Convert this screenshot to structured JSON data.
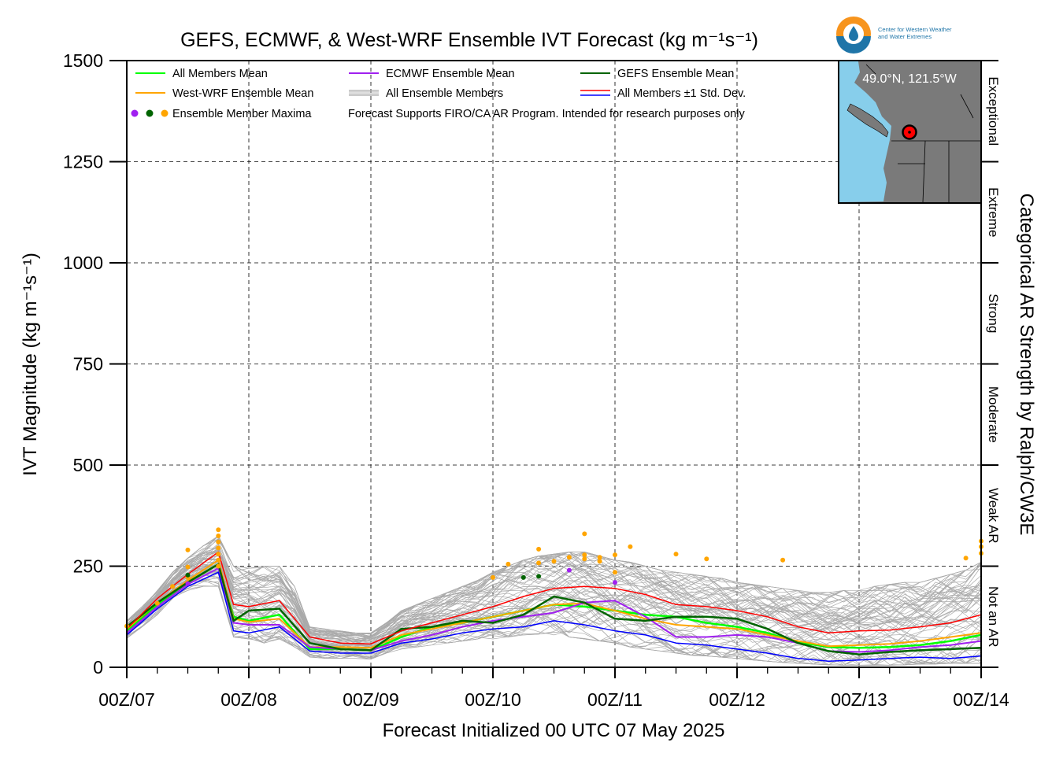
{
  "chart_data": {
    "type": "line",
    "title": "GEFS, ECMWF, & West-WRF Ensemble IVT Forecast (kg m⁻¹s⁻¹)",
    "xlabel": "Forecast Initialized 00 UTC 07 May 2025",
    "ylabel": "IVT Magnitude (kg m⁻¹s⁻¹)",
    "y2label": "Categorical AR Strength by Ralph/CW3E",
    "ylim": [
      0,
      1500
    ],
    "y_ticks": [
      0,
      250,
      500,
      750,
      1000,
      1250,
      1500
    ],
    "x_range_hours": [
      0,
      168
    ],
    "x_ticks": [
      "00Z/07",
      "00Z/08",
      "00Z/09",
      "00Z/10",
      "00Z/11",
      "00Z/12",
      "00Z/13",
      "00Z/14"
    ],
    "grid": true,
    "categories_right": [
      {
        "label": "Not an AR",
        "from": 0,
        "to": 250
      },
      {
        "label": "Weak AR",
        "from": 250,
        "to": 500
      },
      {
        "label": "Moderate",
        "from": 500,
        "to": 750
      },
      {
        "label": "Strong",
        "from": 750,
        "to": 1000
      },
      {
        "label": "Extreme",
        "from": 1000,
        "to": 1250
      },
      {
        "label": "Exceptional",
        "from": 1250,
        "to": 1500
      }
    ],
    "legend": {
      "placement": "top-left",
      "entries": [
        {
          "label": "All Members Mean",
          "color": "#00ff00",
          "kind": "line"
        },
        {
          "label": "ECMWF Ensemble Mean",
          "color": "#a020f0",
          "kind": "line"
        },
        {
          "label": "GEFS Ensemble Mean",
          "color": "#006400",
          "kind": "line"
        },
        {
          "label": "West-WRF Ensemble Mean",
          "color": "#ffa500",
          "kind": "line"
        },
        {
          "label": "All Ensemble Members",
          "color": "#aaaaaa",
          "kind": "multiline"
        },
        {
          "label": "All Members ±1 Std. Dev.",
          "color": "#ff0000",
          "color2": "#0000ff",
          "kind": "pair"
        },
        {
          "label": "Ensemble Member Maxima",
          "colors": [
            "#a020f0",
            "#006400",
            "#ffa500"
          ],
          "kind": "dots"
        }
      ],
      "note": "Forecast Supports FIRO/CA AR Program. Intended for research purposes only"
    },
    "inset_label": "49.0°N, 121.5°W",
    "logo_text": [
      "Center for Western Weather",
      "and Water Extremes"
    ],
    "series": [
      {
        "name": "All Members Mean",
        "color": "#00ff00",
        "width": 2.5,
        "x": [
          0,
          6,
          12,
          18,
          21,
          24,
          30,
          36,
          42,
          48,
          54,
          60,
          66,
          72,
          78,
          84,
          90,
          96,
          102,
          108,
          114,
          120,
          126,
          132,
          138,
          144,
          150,
          156,
          162,
          168
        ],
        "y": [
          90,
          155,
          210,
          255,
          125,
          115,
          130,
          45,
          45,
          42,
          75,
          100,
          110,
          125,
          140,
          155,
          150,
          140,
          130,
          125,
          110,
          100,
          85,
          62,
          50,
          48,
          50,
          55,
          65,
          80
        ]
      },
      {
        "name": "West-WRF Ensemble Mean",
        "color": "#ffa500",
        "width": 2,
        "x": [
          0,
          6,
          12,
          18,
          21,
          24,
          30,
          36,
          42,
          48,
          54,
          60,
          66,
          72,
          78,
          84,
          90,
          96,
          102,
          108,
          114,
          120,
          126,
          132,
          138,
          144,
          150,
          156,
          162,
          168
        ],
        "y": [
          95,
          160,
          215,
          265,
          120,
          112,
          120,
          50,
          50,
          48,
          80,
          95,
          110,
          125,
          140,
          155,
          158,
          140,
          120,
          105,
          100,
          95,
          80,
          65,
          52,
          55,
          58,
          65,
          75,
          85
        ]
      },
      {
        "name": "ECMWF Ensemble Mean",
        "color": "#a020f0",
        "width": 2,
        "x": [
          0,
          6,
          12,
          18,
          21,
          24,
          30,
          36,
          42,
          48,
          54,
          60,
          66,
          72,
          78,
          84,
          90,
          96,
          102,
          108,
          114,
          120,
          126,
          132,
          138,
          144,
          150,
          156,
          162,
          168
        ],
        "y": [
          85,
          150,
          205,
          245,
          110,
          105,
          105,
          50,
          45,
          42,
          65,
          80,
          100,
          115,
          125,
          135,
          160,
          165,
          125,
          75,
          75,
          80,
          75,
          60,
          40,
          38,
          42,
          50,
          55,
          65
        ]
      },
      {
        "name": "GEFS Ensemble Mean",
        "color": "#006400",
        "width": 2.5,
        "x": [
          0,
          6,
          12,
          18,
          21,
          24,
          30,
          36,
          42,
          48,
          54,
          60,
          66,
          72,
          78,
          84,
          90,
          96,
          102,
          108,
          114,
          120,
          126,
          132,
          138,
          144,
          150,
          156,
          162,
          168
        ],
        "y": [
          100,
          160,
          210,
          255,
          115,
          140,
          145,
          60,
          45,
          42,
          95,
          100,
          115,
          110,
          130,
          175,
          160,
          120,
          115,
          125,
          125,
          120,
          95,
          60,
          40,
          32,
          38,
          42,
          45,
          48
        ]
      },
      {
        "name": "All Members +1 Std. Dev.",
        "color": "#ff0000",
        "width": 1.5,
        "x": [
          0,
          6,
          12,
          18,
          21,
          24,
          30,
          36,
          42,
          48,
          54,
          60,
          66,
          72,
          78,
          84,
          90,
          96,
          102,
          108,
          114,
          120,
          126,
          132,
          138,
          144,
          150,
          156,
          162,
          168
        ],
        "y": [
          95,
          170,
          230,
          285,
          155,
          150,
          165,
          75,
          60,
          58,
          90,
          110,
          130,
          150,
          175,
          195,
          200,
          195,
          180,
          155,
          150,
          140,
          125,
          100,
          85,
          90,
          92,
          100,
          110,
          130
        ]
      },
      {
        "name": "All Members -1 Std. Dev.",
        "color": "#0000ff",
        "width": 1.5,
        "x": [
          0,
          6,
          12,
          18,
          21,
          24,
          30,
          36,
          42,
          48,
          54,
          60,
          66,
          72,
          78,
          84,
          90,
          96,
          102,
          108,
          114,
          120,
          126,
          132,
          138,
          144,
          150,
          156,
          162,
          168
        ],
        "y": [
          80,
          145,
          200,
          235,
          90,
          85,
          100,
          40,
          35,
          35,
          60,
          70,
          85,
          95,
          100,
          115,
          105,
          90,
          80,
          60,
          55,
          45,
          35,
          22,
          15,
          18,
          22,
          25,
          22,
          28
        ]
      }
    ],
    "maxima": [
      {
        "color": "#ffa500",
        "points": [
          [
            0,
            102
          ],
          [
            6,
            158
          ],
          [
            9,
            200
          ],
          [
            12,
            222
          ],
          [
            12,
            248
          ],
          [
            12,
            290
          ],
          [
            18,
            250
          ],
          [
            18,
            265
          ],
          [
            18,
            280
          ],
          [
            18,
            295
          ],
          [
            18,
            310
          ],
          [
            18,
            325
          ],
          [
            18,
            340
          ],
          [
            72,
            222
          ],
          [
            75,
            255
          ],
          [
            81,
            292
          ],
          [
            81,
            258
          ],
          [
            84,
            262
          ],
          [
            87,
            272
          ],
          [
            90,
            268
          ],
          [
            90,
            278
          ],
          [
            90,
            330
          ],
          [
            93,
            272
          ],
          [
            93,
            262
          ],
          [
            96,
            235
          ],
          [
            96,
            278
          ],
          [
            99,
            298
          ],
          [
            108,
            280
          ],
          [
            114,
            268
          ],
          [
            129,
            265
          ],
          [
            165,
            270
          ],
          [
            168,
            282
          ],
          [
            168,
            298
          ],
          [
            168,
            312
          ]
        ]
      },
      {
        "color": "#006400",
        "points": [
          [
            12,
            228
          ],
          [
            78,
            222
          ],
          [
            81,
            225
          ]
        ]
      },
      {
        "color": "#a020f0",
        "points": [
          [
            12,
            207
          ],
          [
            87,
            240
          ],
          [
            96,
            210
          ]
        ]
      }
    ],
    "members": {
      "count": 70,
      "color": "#aaaaaa",
      "width": 0.7,
      "x": [
        0,
        3,
        6,
        9,
        12,
        15,
        18,
        21,
        24,
        27,
        30,
        33,
        36,
        39,
        42,
        45,
        48,
        51,
        54,
        57,
        60,
        63,
        66,
        69,
        72,
        75,
        78,
        81,
        84,
        87,
        90,
        93,
        96,
        99,
        102,
        105,
        108,
        111,
        114,
        117,
        120,
        123,
        126,
        129,
        132,
        135,
        138,
        141,
        144,
        147,
        150,
        153,
        156,
        159,
        162,
        165,
        168
      ],
      "low_envelope": [
        70,
        100,
        130,
        170,
        190,
        200,
        200,
        75,
        70,
        60,
        70,
        50,
        25,
        22,
        22,
        22,
        20,
        35,
        45,
        50,
        55,
        60,
        65,
        70,
        70,
        75,
        80,
        82,
        80,
        75,
        70,
        65,
        60,
        50,
        45,
        40,
        35,
        30,
        28,
        25,
        22,
        18,
        15,
        12,
        10,
        8,
        6,
        5,
        5,
        5,
        5,
        6,
        8,
        8,
        10,
        10,
        10
      ],
      "high_envelope": [
        115,
        150,
        190,
        235,
        270,
        300,
        325,
        250,
        245,
        250,
        250,
        200,
        100,
        95,
        90,
        85,
        85,
        110,
        140,
        155,
        170,
        185,
        200,
        215,
        235,
        250,
        265,
        275,
        280,
        285,
        285,
        275,
        265,
        260,
        250,
        240,
        235,
        230,
        225,
        220,
        210,
        205,
        200,
        195,
        190,
        185,
        185,
        190,
        190,
        200,
        205,
        210,
        210,
        220,
        230,
        240,
        260
      ]
    }
  }
}
